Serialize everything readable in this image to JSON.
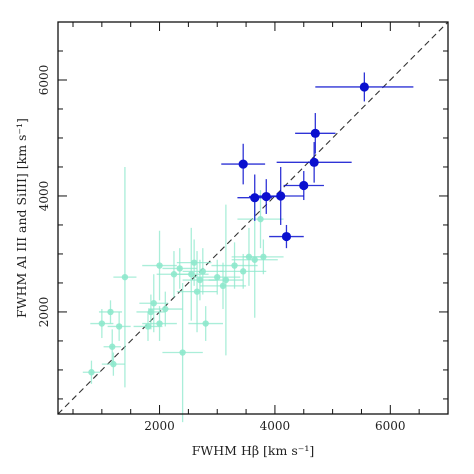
{
  "chart_data": {
    "type": "scatter",
    "xlabel": "FWHM Hβ [km s⁻¹]",
    "ylabel": "FWHM Al III and SiIII] [km s⁻¹]",
    "xlim": [
      240,
      7000
    ],
    "ylim": [
      240,
      7000
    ],
    "xticks": [
      2000,
      4000,
      6000
    ],
    "yticks": [
      2000,
      4000,
      6000
    ],
    "xtick_labels": [
      "2000",
      "4000",
      "6000"
    ],
    "ytick_labels": [
      "2000",
      "4000",
      "6000"
    ],
    "minor_tick_step": 500,
    "grid": false,
    "reference_line": {
      "style": "dashed",
      "color": "#333333",
      "relation": "y = x"
    },
    "series": [
      {
        "color": "#8ee8cc",
        "marker_size": 3.2,
        "points": [
          {
            "x": 820,
            "y": 960,
            "xerr": 150,
            "yerr": 200
          },
          {
            "x": 1000,
            "y": 1800,
            "xerr": 200,
            "yerr": 250
          },
          {
            "x": 1150,
            "y": 2000,
            "xerr": 200,
            "yerr": 200
          },
          {
            "x": 1180,
            "y": 1400,
            "xerr": 150,
            "yerr": 300
          },
          {
            "x": 1200,
            "y": 1100,
            "xerr": 200,
            "yerr": 200
          },
          {
            "x": 1300,
            "y": 1750,
            "xerr": 200,
            "yerr": 250
          },
          {
            "x": 1400,
            "y": 2600,
            "xerr": 200,
            "yerr": 1900
          },
          {
            "x": 1800,
            "y": 1750,
            "xerr": 250,
            "yerr": 250
          },
          {
            "x": 1850,
            "y": 2000,
            "xerr": 250,
            "yerr": 300
          },
          {
            "x": 1900,
            "y": 2150,
            "xerr": 250,
            "yerr": 500
          },
          {
            "x": 2000,
            "y": 1800,
            "xerr": 300,
            "yerr": 300
          },
          {
            "x": 2000,
            "y": 2800,
            "xerr": 300,
            "yerr": 600
          },
          {
            "x": 2100,
            "y": 2050,
            "xerr": 300,
            "yerr": 300
          },
          {
            "x": 2250,
            "y": 2650,
            "xerr": 300,
            "yerr": 400
          },
          {
            "x": 2350,
            "y": 2750,
            "xerr": 300,
            "yerr": 350
          },
          {
            "x": 2400,
            "y": 1300,
            "xerr": 350,
            "yerr": 1200
          },
          {
            "x": 2550,
            "y": 2650,
            "xerr": 300,
            "yerr": 800
          },
          {
            "x": 2600,
            "y": 2850,
            "xerr": 300,
            "yerr": 400
          },
          {
            "x": 2650,
            "y": 2350,
            "xerr": 350,
            "yerr": 700
          },
          {
            "x": 2700,
            "y": 2550,
            "xerr": 300,
            "yerr": 350
          },
          {
            "x": 2750,
            "y": 2700,
            "xerr": 350,
            "yerr": 400
          },
          {
            "x": 2800,
            "y": 1800,
            "xerr": 300,
            "yerr": 300
          },
          {
            "x": 3000,
            "y": 2600,
            "xerr": 400,
            "yerr": 300
          },
          {
            "x": 3100,
            "y": 2450,
            "xerr": 400,
            "yerr": 400
          },
          {
            "x": 3150,
            "y": 2550,
            "xerr": 300,
            "yerr": 1300
          },
          {
            "x": 3300,
            "y": 2800,
            "xerr": 400,
            "yerr": 400
          },
          {
            "x": 3450,
            "y": 2700,
            "xerr": 400,
            "yerr": 300
          },
          {
            "x": 3550,
            "y": 2950,
            "xerr": 300,
            "yerr": 500
          },
          {
            "x": 3650,
            "y": 2900,
            "xerr": 400,
            "yerr": 1000
          },
          {
            "x": 3750,
            "y": 3600,
            "xerr": 400,
            "yerr": 500
          },
          {
            "x": 3800,
            "y": 2950,
            "xerr": 350,
            "yerr": 300
          }
        ]
      },
      {
        "color": "#0a10cf",
        "marker_size": 4.6,
        "points": [
          {
            "x": 3450,
            "y": 4550,
            "xerr": 380,
            "yerr": 350
          },
          {
            "x": 3650,
            "y": 3970,
            "xerr": 300,
            "yerr": 400
          },
          {
            "x": 3850,
            "y": 3990,
            "xerr": 300,
            "yerr": 300
          },
          {
            "x": 4100,
            "y": 4000,
            "xerr": 400,
            "yerr": 500
          },
          {
            "x": 4200,
            "y": 3300,
            "xerr": 300,
            "yerr": 200
          },
          {
            "x": 4500,
            "y": 4180,
            "xerr": 350,
            "yerr": 250
          },
          {
            "x": 4680,
            "y": 4580,
            "xerr": 650,
            "yerr": 350
          },
          {
            "x": 4700,
            "y": 5080,
            "xerr": 350,
            "yerr": 350
          },
          {
            "x": 5550,
            "y": 5880,
            "xerr": 850,
            "yerr": 250
          }
        ]
      }
    ]
  }
}
